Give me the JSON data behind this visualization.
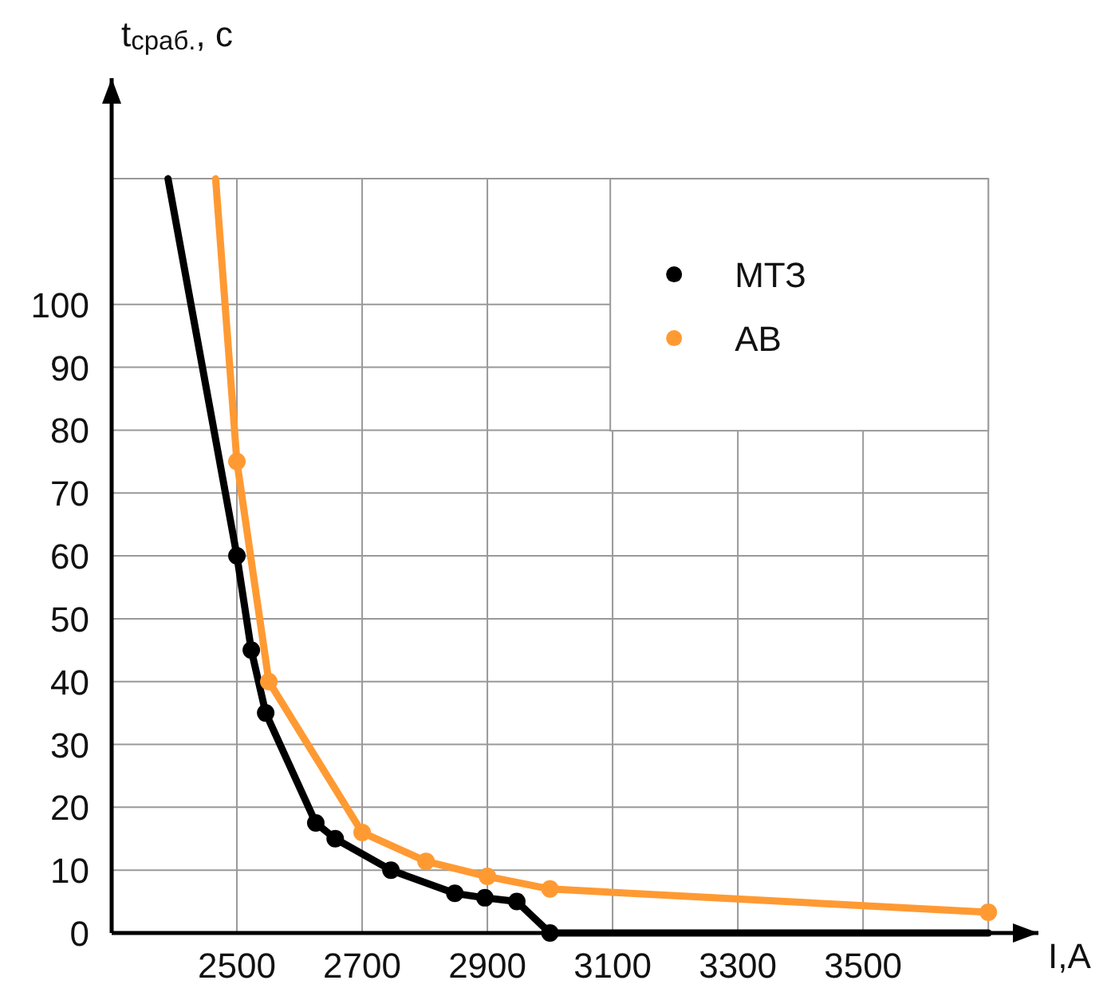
{
  "chart_data": {
    "type": "line",
    "xlabel": "I,А",
    "ylabel": "t$_{сраб.}$, с",
    "xlim": [
      2300,
      3780
    ],
    "ylim": [
      0,
      136
    ],
    "xticks": [
      2500,
      2700,
      2900,
      3100,
      3300,
      3500,
      {
        "value": 3700,
        "label": null
      }
    ],
    "yticks": [
      0,
      10,
      20,
      30,
      40,
      50,
      60,
      70,
      80,
      90,
      100,
      {
        "value": 120,
        "label": null
      }
    ],
    "grid": true,
    "legend": "top right",
    "series": [
      {
        "color": "#000000",
        "x": [
          2390,
          2500
        ],
        "values": [
          120,
          60
        ]
      },
      {
        "name": "МТЗ",
        "color": "#000000",
        "marker": "circle",
        "x": [
          2500,
          2523,
          2546,
          2626,
          2657,
          2746,
          2848,
          2896,
          2947,
          3000
        ],
        "values": [
          60,
          45,
          35,
          17.5,
          15,
          10,
          6.3,
          5.6,
          5,
          0
        ]
      },
      {
        "color": "#000000",
        "x": [
          3000,
          3700
        ],
        "values": [
          0,
          0
        ]
      },
      {
        "color": "#ff9a33",
        "x": [
          2466,
          2500
        ],
        "values": [
          120,
          75
        ]
      },
      {
        "name": "АВ",
        "color": "#ff9a33",
        "marker": "circle",
        "x": [
          2500,
          2551,
          2700,
          2802,
          2900,
          3000,
          3700
        ],
        "values": [
          75,
          40,
          16,
          11.4,
          9,
          7,
          3.3
        ]
      }
    ]
  }
}
